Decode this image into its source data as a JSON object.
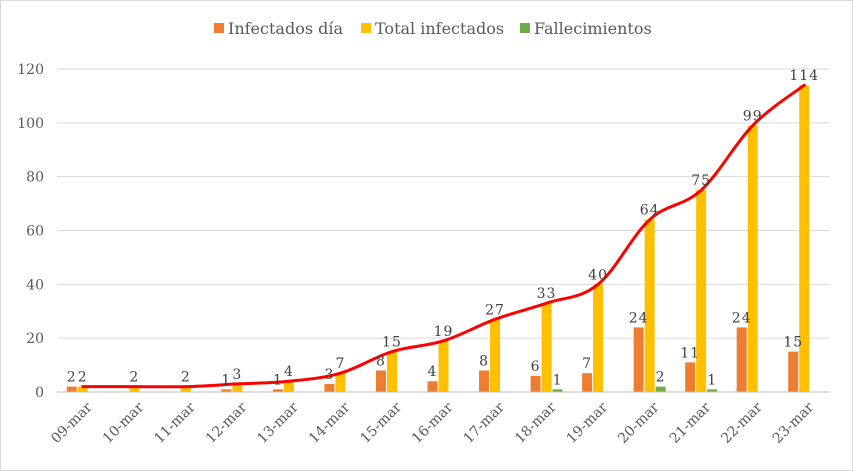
{
  "chart_data": {
    "type": "bar",
    "categories": [
      "09-mar",
      "10-mar",
      "11-mar",
      "12-mar",
      "13-mar",
      "14-mar",
      "15-mar",
      "16-mar",
      "17-mar",
      "18-mar",
      "19-mar",
      "20-mar",
      "21-mar",
      "22-mar",
      "23-mar"
    ],
    "series": [
      {
        "name": "Infectados día",
        "color": "#ed7d31",
        "values": [
          2,
          null,
          null,
          1,
          1,
          3,
          8,
          4,
          8,
          6,
          7,
          24,
          11,
          24,
          15
        ]
      },
      {
        "name": "Total infectados",
        "color": "#ffc000",
        "values": [
          2,
          2,
          2,
          3,
          4,
          7,
          15,
          19,
          27,
          33,
          40,
          64,
          75,
          99,
          114
        ]
      },
      {
        "name": "Fallecimientos",
        "color": "#70ad47",
        "values": [
          null,
          null,
          null,
          null,
          null,
          null,
          null,
          null,
          null,
          1,
          null,
          2,
          1,
          null,
          null
        ]
      }
    ],
    "trend_line": {
      "color": "#ff0000",
      "follows": "Total infectados",
      "smoothed": true
    },
    "ylim": [
      0,
      120
    ],
    "yticks": [
      "0",
      "20",
      "40",
      "60",
      "80",
      "100",
      "120"
    ],
    "grid": "horizontal",
    "legend": "top-center",
    "title": "",
    "xlabel": "",
    "ylabel": ""
  }
}
